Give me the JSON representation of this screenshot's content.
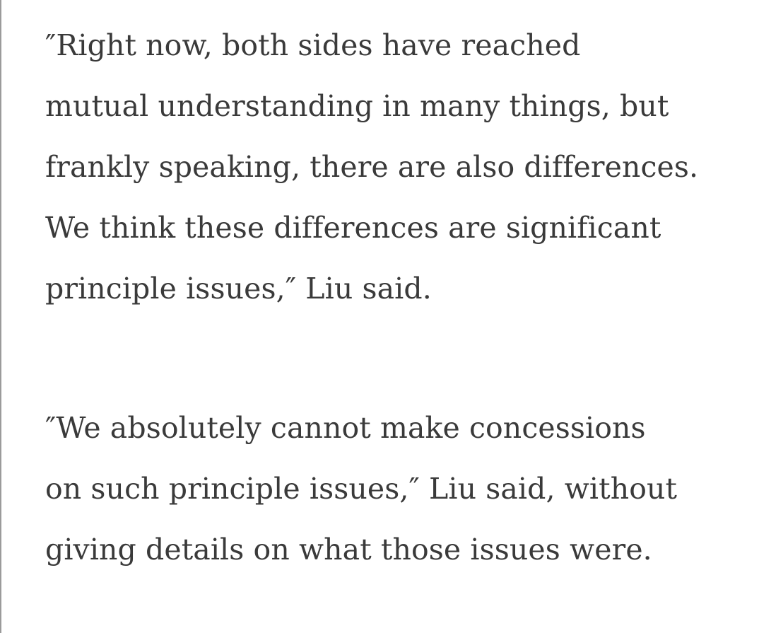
{
  "page": {
    "background_color": "#ffffff",
    "left_edge_line_color": "#9b9b9b",
    "text_color": "#3a3a3a"
  },
  "article": {
    "paragraphs": [
      {
        "text": "″Right now, both sides have reached mutual understanding in many things, but frankly speaking, there are also differences. We think these differences are significant principle issues,″ Liu said.",
        "lines": [
          "″Right now, both sides have reached",
          "mutual understanding in many things, but",
          "frankly speaking, there are also differences.",
          "We think these differences are significant",
          "principle issues,″ Liu said."
        ]
      },
      {
        "text": "″We absolutely cannot make concessions on such principle issues,″ Liu said, without giving details on what those issues were.",
        "lines": [
          "″We absolutely cannot make concessions",
          "on such principle issues,″ Liu said, without",
          "giving details on what those issues were."
        ]
      }
    ]
  }
}
